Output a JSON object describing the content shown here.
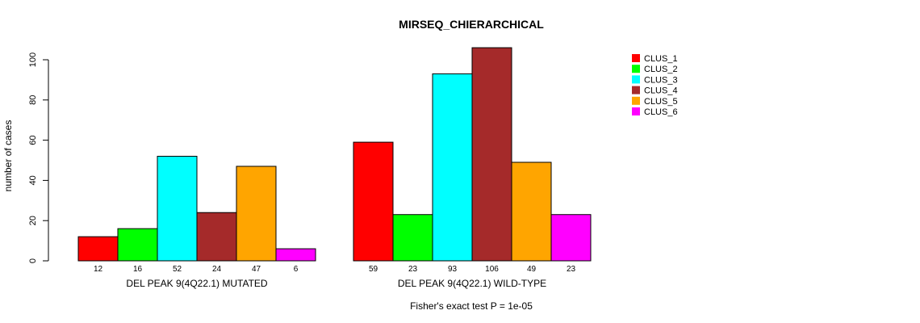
{
  "chart_data": {
    "type": "bar",
    "title": "MIRSEQ_CHIERARCHICAL",
    "ylabel": "number of cases",
    "ylim": [
      0,
      100
    ],
    "yticks": [
      0,
      20,
      40,
      60,
      80,
      100
    ],
    "footnote": "Fisher's exact test P = 1e-05",
    "legend_position": "top-right",
    "series": [
      {
        "name": "CLUS_1",
        "color": "#ff0000"
      },
      {
        "name": "CLUS_2",
        "color": "#00ff00"
      },
      {
        "name": "CLUS_3",
        "color": "#00ffff"
      },
      {
        "name": "CLUS_4",
        "color": "#a52a2a"
      },
      {
        "name": "CLUS_5",
        "color": "#ffa500"
      },
      {
        "name": "CLUS_6",
        "color": "#ff00ff"
      }
    ],
    "groups": [
      {
        "label": "DEL PEAK  9(4Q22.1) MUTATED",
        "values": [
          12,
          16,
          52,
          24,
          47,
          6
        ]
      },
      {
        "label": "DEL PEAK  9(4Q22.1) WILD-TYPE",
        "values": [
          59,
          23,
          93,
          106,
          49,
          23
        ]
      }
    ]
  }
}
